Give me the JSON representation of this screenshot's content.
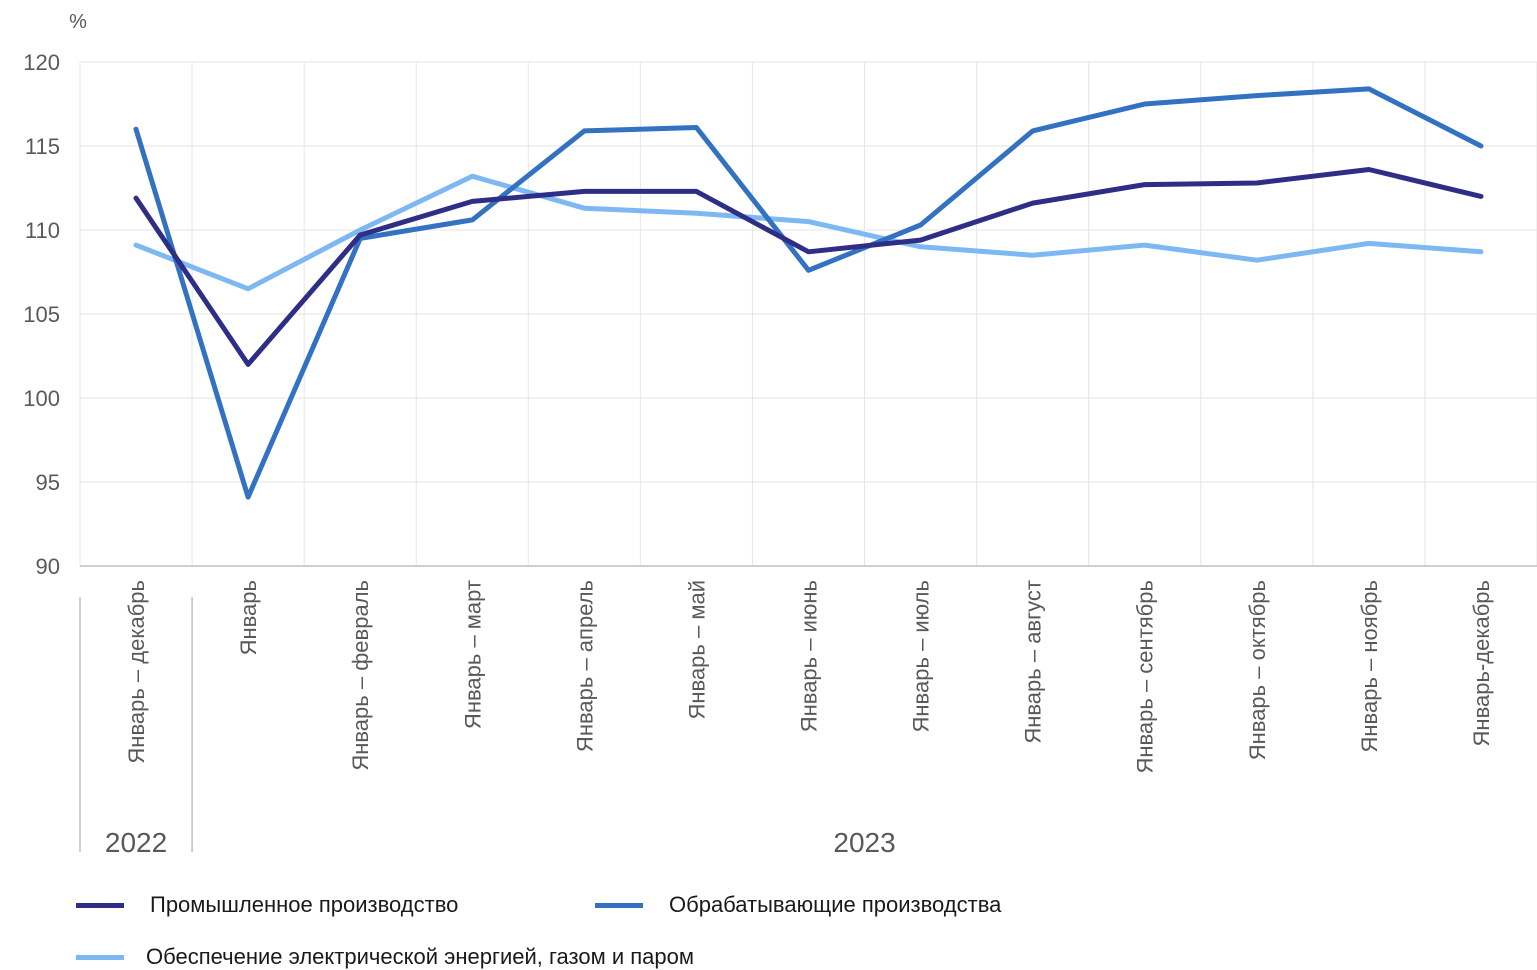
{
  "chart_data": {
    "type": "line",
    "ylabel": "%",
    "ylim": [
      90,
      120
    ],
    "yticks": [
      90,
      95,
      100,
      105,
      110,
      115,
      120
    ],
    "categories": [
      "Январь – декабрь",
      "Январь",
      "Январь – февраль",
      "Январь – март",
      "Январь – апрель",
      "Январь – май",
      "Январь – июнь",
      "Январь – июль",
      "Январь – август",
      "Январь – сентябрь",
      "Январь – октябрь",
      "Январь – ноябрь",
      "Январь-декабрь"
    ],
    "groups": [
      {
        "label": "2022",
        "span": 1
      },
      {
        "label": "2023",
        "span": 12
      }
    ],
    "series": [
      {
        "name": "Промышленное производство",
        "color": "#2e2e86",
        "values": [
          111.9,
          102.0,
          109.7,
          111.7,
          112.3,
          112.3,
          108.7,
          109.4,
          111.6,
          112.7,
          112.8,
          113.6,
          112.0
        ]
      },
      {
        "name": "Обрабатывающие производства",
        "color": "#3272c0",
        "values": [
          116.0,
          94.1,
          109.5,
          110.6,
          115.9,
          116.1,
          107.6,
          110.3,
          115.9,
          117.5,
          118.0,
          118.4,
          115.0
        ]
      },
      {
        "name": "Обеспечение электрической энергией, газом и паром",
        "color": "#7eb8f3",
        "values": [
          109.1,
          106.5,
          110.0,
          113.2,
          111.3,
          111.0,
          110.5,
          109.0,
          108.5,
          109.1,
          108.2,
          109.2,
          108.7
        ]
      }
    ],
    "grid": true,
    "legend": "bottom"
  }
}
